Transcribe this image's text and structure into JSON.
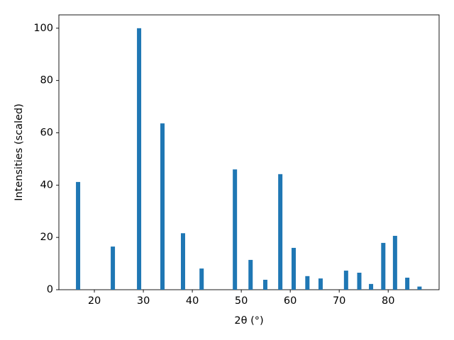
{
  "chart_data": {
    "type": "bar",
    "xlabel": "2θ (°)",
    "ylabel": "Intensities (scaled)",
    "x": [
      16.67,
      23.77,
      29.13,
      33.9,
      38.1,
      41.9,
      48.7,
      51.9,
      54.9,
      57.97,
      60.7,
      63.5,
      66.2,
      71.4,
      74.1,
      76.5,
      79.0,
      81.4,
      83.9,
      86.4
    ],
    "values": [
      41.2,
      16.5,
      100,
      63.6,
      21.6,
      8.1,
      46,
      11.4,
      3.8,
      44.2,
      16,
      5.2,
      4.3,
      7.3,
      6.5,
      2.2,
      17.9,
      20.6,
      4.6,
      1.2
    ],
    "color": "#1f77b4",
    "xlim": [
      12.75,
      90.4
    ],
    "xticks": [
      20,
      30,
      40,
      50,
      60,
      70,
      80
    ],
    "ylim": [
      0,
      105.1
    ],
    "yticks": [
      0,
      20,
      40,
      60,
      80,
      100
    ],
    "grid": false
  }
}
